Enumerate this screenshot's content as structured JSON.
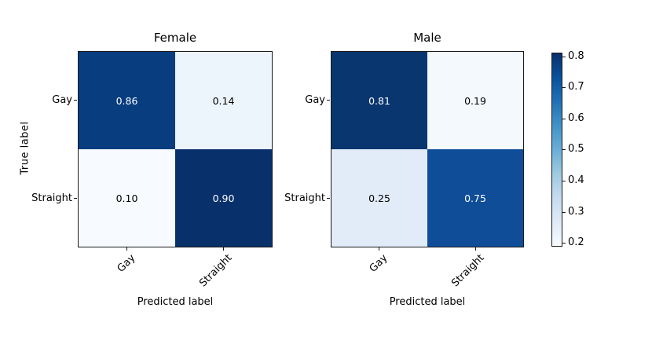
{
  "figure": {
    "background": "#ffffff",
    "text_color": "#000000",
    "ylabel": "True label"
  },
  "matrices": [
    {
      "title": "Female",
      "xlabel": "Predicted label",
      "ytick_labels": [
        "Gay",
        "Straight"
      ],
      "xtick_labels": [
        "Gay",
        "Straight"
      ],
      "cells": [
        {
          "label": "0.86",
          "bg": "#083d7f",
          "fg": "#ffffff"
        },
        {
          "label": "0.14",
          "bg": "#edf5fc",
          "fg": "#000000"
        },
        {
          "label": "0.10",
          "bg": "#f7fbff",
          "fg": "#000000"
        },
        {
          "label": "0.90",
          "bg": "#08306b",
          "fg": "#ffffff"
        }
      ]
    },
    {
      "title": "Male",
      "xlabel": "Predicted label",
      "ytick_labels": [
        "Gay",
        "Straight"
      ],
      "xtick_labels": [
        "Gay",
        "Straight"
      ],
      "cells": [
        {
          "label": "0.81",
          "bg": "#09366f",
          "fg": "#ffffff"
        },
        {
          "label": "0.19",
          "bg": "#f4f9fe",
          "fg": "#000000"
        },
        {
          "label": "0.25",
          "bg": "#e1ecf8",
          "fg": "#000000"
        },
        {
          "label": "0.75",
          "bg": "#0f4d99",
          "fg": "#ffffff"
        }
      ]
    }
  ],
  "colorbar": {
    "tick_labels": [
      "0.8",
      "0.7",
      "0.6",
      "0.5",
      "0.4",
      "0.3",
      "0.2"
    ],
    "vmin": 0.19,
    "vmax": 0.81,
    "colormap": "Blues",
    "gradient_stops": [
      "#08306b 0%",
      "#08519c 12.5%",
      "#2171b5 25%",
      "#4292c6 37.5%",
      "#6baed6 50%",
      "#9ecae1 62.5%",
      "#c6dbef 75%",
      "#deebf7 87.5%",
      "#f7fbff 100%"
    ]
  },
  "chart_data": [
    {
      "type": "heatmap",
      "title": "Female",
      "xlabel": "Predicted label",
      "ylabel": "True label",
      "x_categories": [
        "Gay",
        "Straight"
      ],
      "y_categories": [
        "Gay",
        "Straight"
      ],
      "values": [
        [
          0.86,
          0.14
        ],
        [
          0.1,
          0.9
        ]
      ],
      "colormap": "Blues",
      "vmin": 0.1,
      "vmax": 0.9,
      "grid": false
    },
    {
      "type": "heatmap",
      "title": "Male",
      "xlabel": "Predicted label",
      "ylabel": "True label",
      "x_categories": [
        "Gay",
        "Straight"
      ],
      "y_categories": [
        "Gay",
        "Straight"
      ],
      "values": [
        [
          0.81,
          0.19
        ],
        [
          0.25,
          0.75
        ]
      ],
      "colormap": "Blues",
      "vmin": 0.19,
      "vmax": 0.81,
      "colorbar_ticks": [
        0.8,
        0.7,
        0.6,
        0.5,
        0.4,
        0.3,
        0.2
      ],
      "colorbar_position": "right",
      "grid": false
    }
  ]
}
